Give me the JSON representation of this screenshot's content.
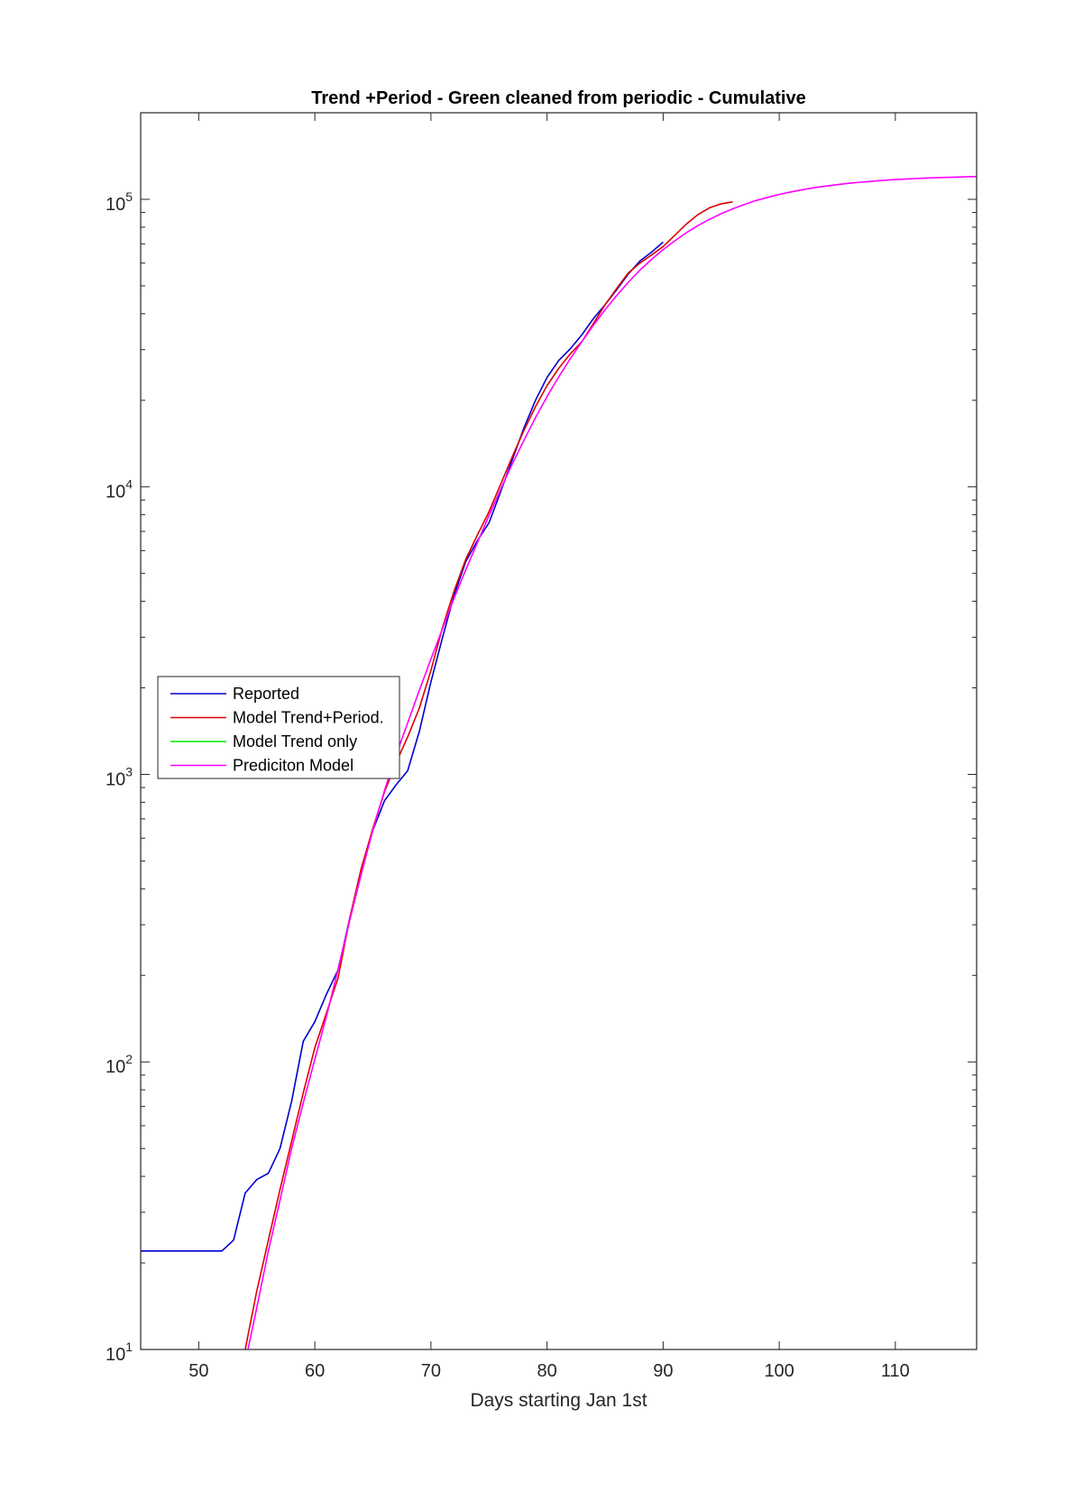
{
  "chart_data": {
    "type": "line",
    "title": "Trend +Period - Green cleaned from periodic - Cumulative",
    "xlabel": "Days starting Jan 1st",
    "ylabel": "",
    "xlim": [
      45,
      117
    ],
    "ylim": [
      10,
      200000
    ],
    "yscale": "log",
    "x_ticks": [
      50,
      60,
      70,
      80,
      90,
      100,
      110
    ],
    "y_ticks": [
      {
        "base": "10",
        "exp": "1",
        "value": 10
      },
      {
        "base": "10",
        "exp": "2",
        "value": 100
      },
      {
        "base": "10",
        "exp": "3",
        "value": 1000
      },
      {
        "base": "10",
        "exp": "4",
        "value": 10000
      },
      {
        "base": "10",
        "exp": "5",
        "value": 100000
      }
    ],
    "grid": false,
    "legend_position": "center-left",
    "series": [
      {
        "name": "Reported",
        "color": "#0000cc",
        "x": [
          45,
          46,
          47,
          48,
          49,
          50,
          51,
          52,
          53,
          54,
          55,
          56,
          57,
          58,
          59,
          60,
          61,
          62,
          63,
          64,
          65,
          66,
          67,
          68,
          69,
          70,
          71,
          72,
          73,
          74,
          75,
          76,
          77,
          78,
          79,
          80,
          81,
          82,
          83,
          84,
          85,
          86,
          87,
          88,
          89,
          90
        ],
        "y": [
          22,
          22,
          22,
          22,
          22,
          22,
          22,
          22,
          24,
          35,
          39,
          41,
          50,
          73,
          118,
          138,
          172,
          209,
          315,
          470,
          640,
          810,
          920,
          1030,
          1410,
          2100,
          3000,
          4200,
          5500,
          6500,
          7500,
          9600,
          12400,
          16000,
          20000,
          24000,
          27500,
          30200,
          33800,
          38500,
          43000,
          48500,
          55000,
          61000,
          65500,
          71000
        ]
      },
      {
        "name": "Model Trend+Period.",
        "color": "#dd0000",
        "x": [
          54,
          55,
          56,
          57,
          58,
          59,
          60,
          61,
          62,
          63,
          64,
          65,
          66,
          67,
          68,
          69,
          70,
          71,
          72,
          73,
          74,
          75,
          76,
          77,
          78,
          79,
          80,
          81,
          82,
          83,
          84,
          85,
          86,
          87,
          88,
          89,
          90,
          91,
          92,
          93,
          94,
          95,
          96
        ],
        "y": [
          10,
          16,
          24,
          36,
          53,
          78,
          112,
          148,
          196,
          315,
          470,
          650,
          870,
          1100,
          1350,
          1700,
          2300,
          3250,
          4350,
          5600,
          6800,
          8200,
          10200,
          12700,
          15700,
          19000,
          22500,
          25800,
          29000,
          32000,
          37000,
          43000,
          49000,
          55500,
          60000,
          64000,
          68500,
          75000,
          82000,
          88500,
          93500,
          96500,
          98000
        ]
      },
      {
        "name": "Model Trend only",
        "color": "#00ee00",
        "x": [],
        "y": []
      },
      {
        "name": "Prediciton Model",
        "color": "#ff00ff",
        "x": [
          54,
          55,
          56,
          57,
          58,
          59,
          60,
          61,
          62,
          63,
          64,
          65,
          66,
          67,
          68,
          69,
          70,
          71,
          72,
          73,
          74,
          75,
          76,
          77,
          78,
          79,
          80,
          81,
          82,
          83,
          84,
          85,
          86,
          87,
          88,
          89,
          90,
          91,
          92,
          93,
          94,
          95,
          96,
          97,
          98,
          99,
          100,
          101,
          102,
          103,
          104,
          105,
          106,
          107,
          108,
          109,
          110,
          111,
          112,
          113,
          114,
          115,
          116,
          117
        ],
        "y": [
          9,
          14,
          22,
          33,
          50,
          72,
          102,
          144,
          210,
          310,
          450,
          640,
          880,
          1170,
          1510,
          1960,
          2520,
          3220,
          4100,
          5150,
          6400,
          7950,
          9800,
          12000,
          14500,
          17400,
          20600,
          24100,
          27900,
          32000,
          36500,
          41300,
          46300,
          51500,
          56700,
          61800,
          66800,
          71700,
          76500,
          81000,
          85200,
          89100,
          92700,
          96000,
          99000,
          101600,
          104000,
          106100,
          108000,
          109700,
          111200,
          112500,
          113700,
          114700,
          115600,
          116400,
          117100,
          117700,
          118200,
          118700,
          119100,
          119400,
          119700,
          120000
        ]
      }
    ]
  }
}
